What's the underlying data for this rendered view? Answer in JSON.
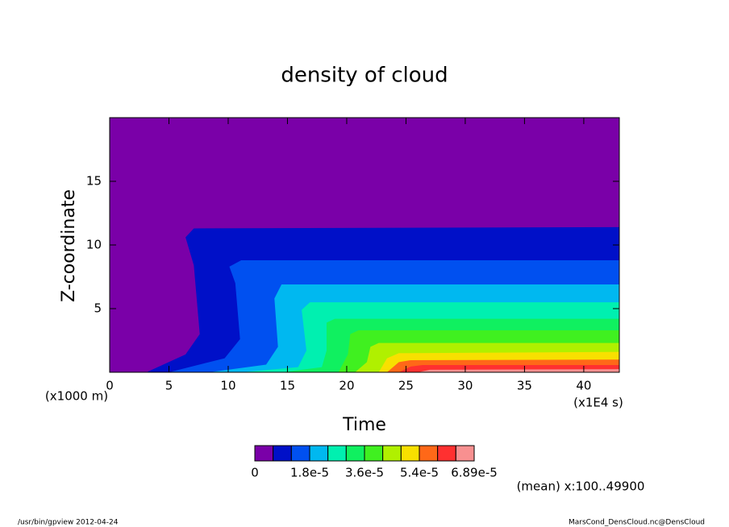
{
  "chart_data": {
    "type": "contour",
    "title": "density of cloud",
    "xlabel": "Time",
    "ylabel": "Z-coordinate",
    "y_unit_label": "(x1000 m)",
    "x_unit_label": "(x1E4 s)",
    "xlim": [
      0,
      43
    ],
    "ylim": [
      0,
      20
    ],
    "xticks": [
      0,
      5,
      10,
      15,
      20,
      25,
      30,
      35,
      40
    ],
    "yticks": [
      5,
      10,
      15
    ],
    "colors": [
      "#7a00a8",
      "#0010c8",
      "#0050f0",
      "#00b8f0",
      "#00f0b0",
      "#10f060",
      "#40f020",
      "#b0f000",
      "#f8e000",
      "#ff6818",
      "#ff3030",
      "#f89090"
    ],
    "levels": [
      0,
      6e-06,
      1.2e-05,
      1.8e-05,
      2.4e-05,
      3e-05,
      3.6e-05,
      4.2e-05,
      4.8e-05,
      5.4e-05,
      6e-05,
      6.6e-05,
      6.89e-05
    ],
    "colorbar_ticks": [
      0,
      {
        "value": 1.8e-05,
        "label": "1.8e-5"
      },
      {
        "value": 3.6e-05,
        "label": "3.6e-5"
      },
      {
        "value": 5.4e-05,
        "label": "5.4e-5"
      },
      {
        "value": 6.89e-05,
        "label": "6.89e-5"
      }
    ],
    "contours": [
      {
        "x": [
          3.1,
          6.4,
          7.6,
          7.1,
          6.4,
          7.1,
          43
        ],
        "y": [
          0,
          1.4,
          3,
          8.4,
          10.6,
          11.3,
          11.4
        ]
      },
      {
        "x": [
          5,
          9.7,
          11,
          10.6,
          10.1,
          11.1,
          43
        ],
        "y": [
          0,
          1.1,
          2.6,
          7,
          8.3,
          8.8,
          8.8
        ]
      },
      {
        "x": [
          8.4,
          13.2,
          14.2,
          13.9,
          14.5,
          43
        ],
        "y": [
          0,
          0.6,
          2,
          5.8,
          6.9,
          6.9
        ]
      },
      {
        "x": [
          11.1,
          15.9,
          16.6,
          16.2,
          16.9,
          43
        ],
        "y": [
          0,
          0.4,
          1.7,
          4.9,
          5.5,
          5.5
        ]
      },
      {
        "x": [
          14.5,
          17.9,
          18.3,
          18.3,
          19,
          43
        ],
        "y": [
          0,
          0.4,
          1.7,
          3.9,
          4.2,
          4.2
        ]
      },
      {
        "x": [
          19.3,
          20.1,
          20.3,
          21,
          43
        ],
        "y": [
          0,
          1.4,
          3,
          3.3,
          3.3
        ]
      },
      {
        "x": [
          20.7,
          21.7,
          22,
          22.7,
          43
        ],
        "y": [
          0,
          0.8,
          2,
          2.3,
          2.3
        ]
      },
      {
        "x": [
          22.7,
          23.4,
          24.4,
          43
        ],
        "y": [
          0,
          1.1,
          1.5,
          1.6
        ]
      },
      {
        "x": [
          23.4,
          24.4,
          25.4,
          43
        ],
        "y": [
          0,
          0.8,
          0.95,
          1.0
        ]
      },
      {
        "x": [
          24.4,
          25.4,
          26.4,
          43
        ],
        "y": [
          0,
          0.45,
          0.57,
          0.57
        ]
      },
      {
        "x": [
          26,
          27,
          43
        ],
        "y": [
          0,
          0.2,
          0.25
        ]
      }
    ],
    "mean_note": "(mean) x:100..49900",
    "footer_left": "/usr/bin/gpview  2012-04-24",
    "footer_right": "MarsCond_DensCloud.nc@DensCloud"
  }
}
